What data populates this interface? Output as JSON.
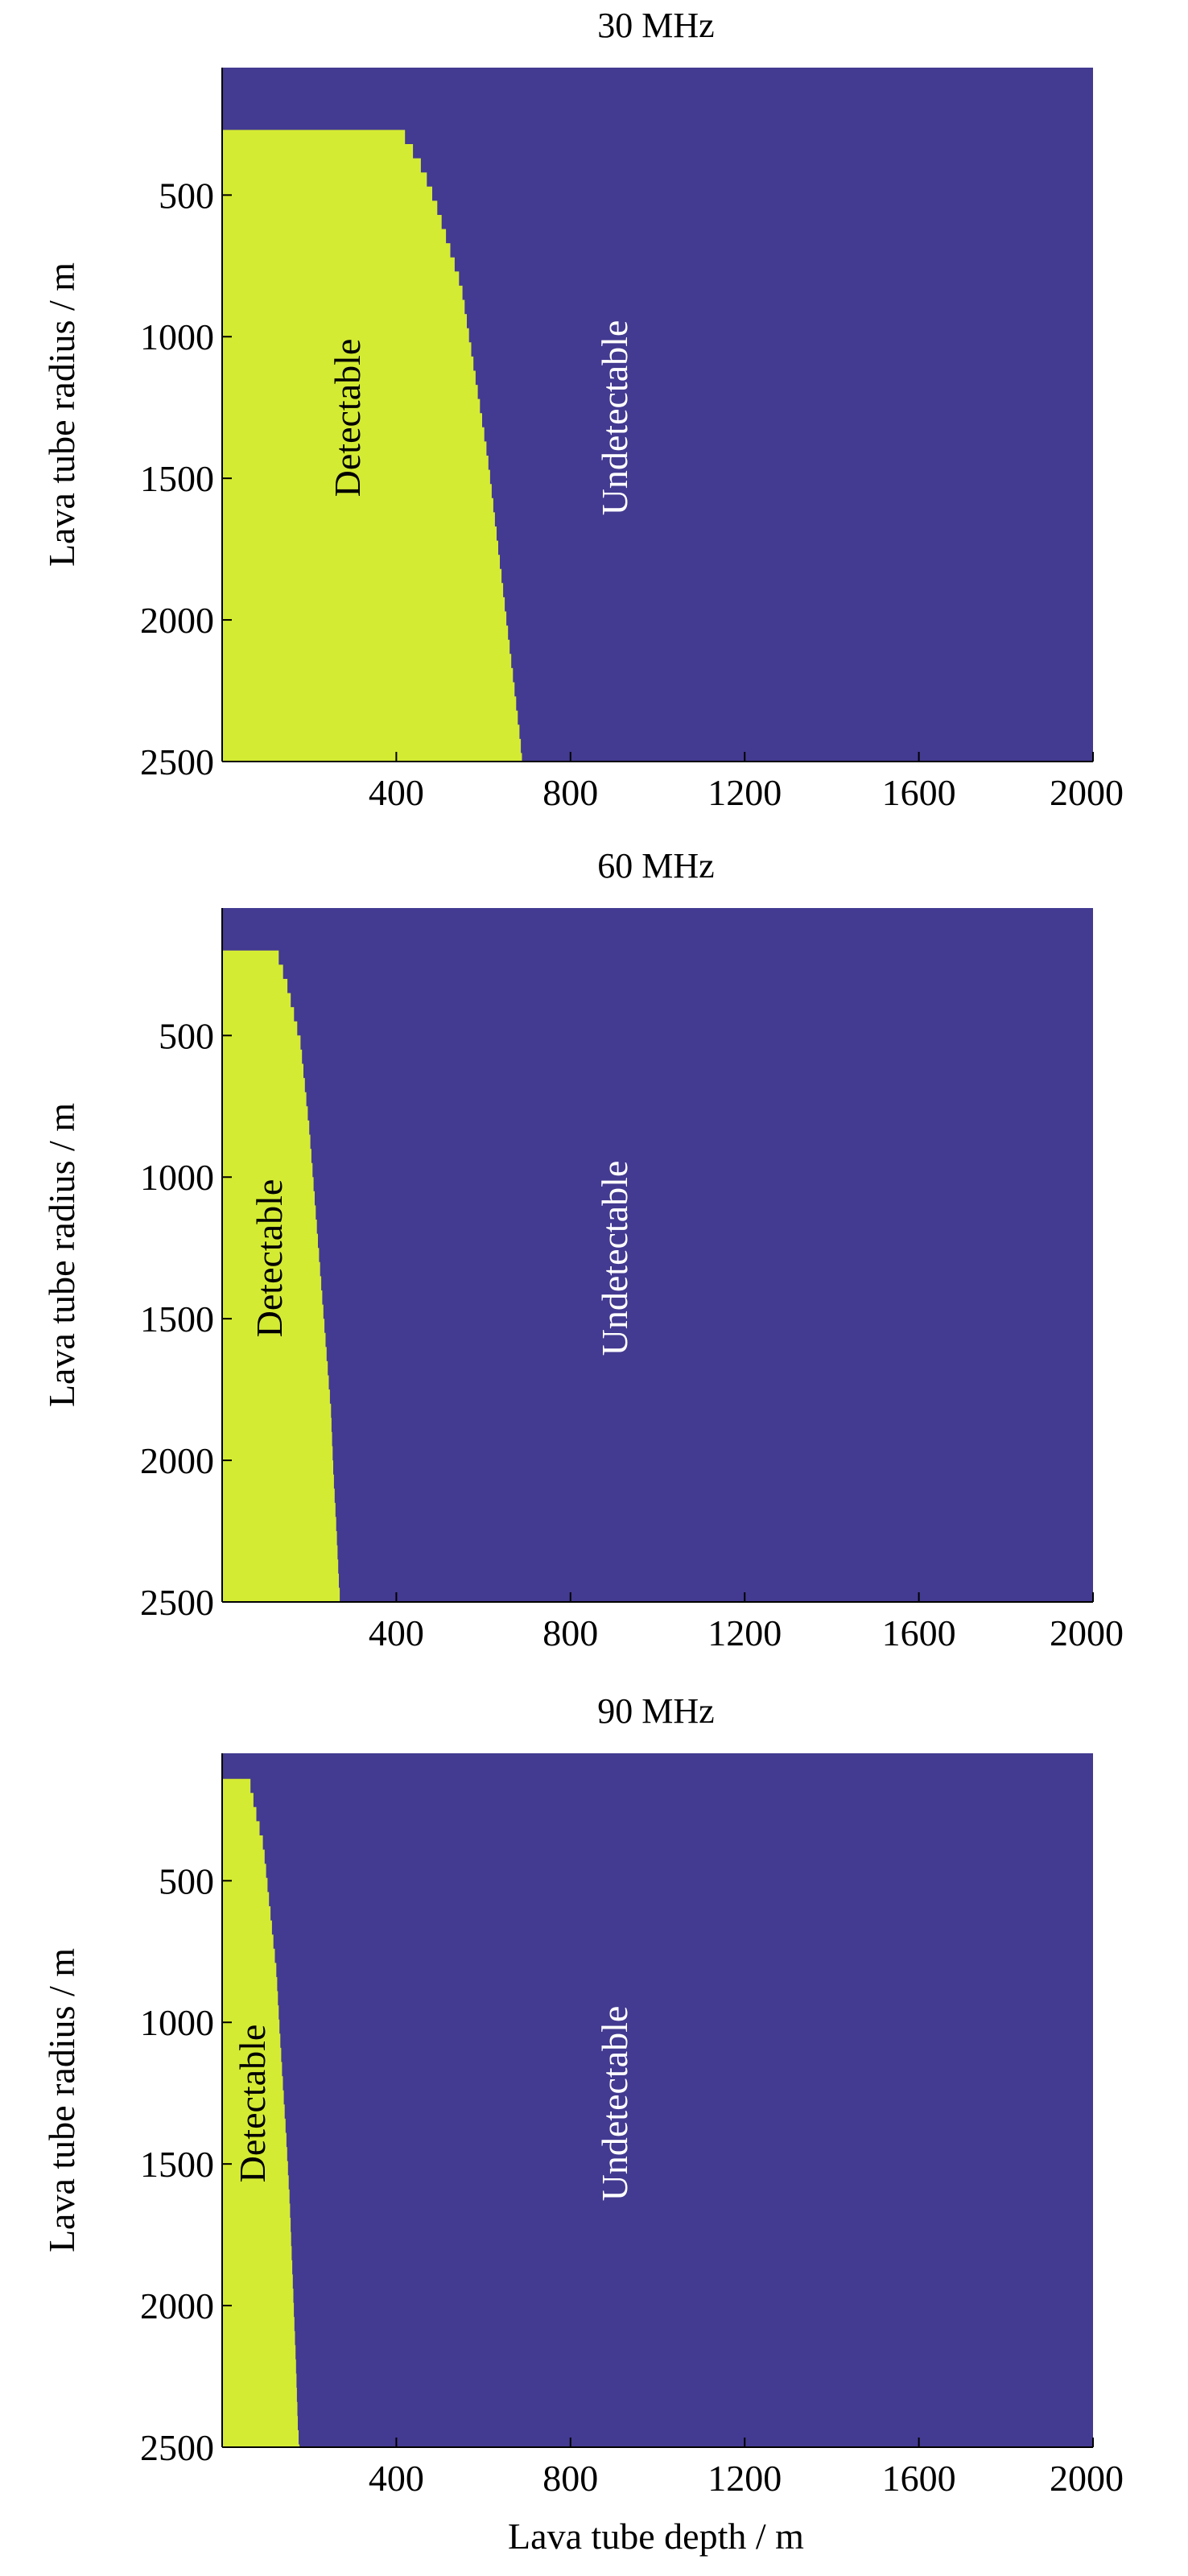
{
  "chart_data": [
    {
      "type": "heatmap",
      "title": "30 MHz",
      "xlabel": "",
      "ylabel": "Lava tube radius / m",
      "xlim": [
        0,
        2000
      ],
      "ylim": [
        2500,
        50
      ],
      "y_axis_inverted": true,
      "xticks": [
        400,
        800,
        1200,
        1600,
        2000
      ],
      "yticks": [
        500,
        1000,
        1500,
        2000,
        2500
      ],
      "colors": {
        "detectable": "#d4eb33",
        "undetectable": "#433a91"
      },
      "region_labels": {
        "detectable": "Detectable",
        "undetectable": "Undetectable"
      },
      "radius_min": 270,
      "boundary": {
        "radius": [
          270,
          380,
          500,
          650,
          800,
          1000,
          1200,
          1400,
          1600,
          1800,
          2000,
          2200,
          2400,
          2500
        ],
        "max_depth": [
          420,
          460,
          490,
          520,
          550,
          570,
          590,
          610,
          625,
          640,
          655,
          670,
          685,
          690
        ]
      }
    },
    {
      "type": "heatmap",
      "title": "60 MHz",
      "xlabel": "",
      "ylabel": "Lava tube radius / m",
      "xlim": [
        0,
        2000
      ],
      "ylim": [
        2500,
        50
      ],
      "y_axis_inverted": true,
      "xticks": [
        400,
        800,
        1200,
        1600,
        2000
      ],
      "yticks": [
        500,
        1000,
        1500,
        2000,
        2500
      ],
      "colors": {
        "detectable": "#d4eb33",
        "undetectable": "#433a91"
      },
      "region_labels": {
        "detectable": "Detectable",
        "undetectable": "Undetectable"
      },
      "radius_min": 200,
      "boundary": {
        "radius": [
          200,
          300,
          400,
          500,
          650,
          800,
          1000,
          1200,
          1400,
          1600,
          1800,
          2000,
          2200,
          2400,
          2500
        ],
        "max_depth": [
          130,
          150,
          165,
          180,
          190,
          200,
          210,
          220,
          230,
          240,
          250,
          255,
          262,
          268,
          272
        ]
      }
    },
    {
      "type": "heatmap",
      "title": "90 MHz",
      "xlabel": "Lava tube depth / m",
      "ylabel": "Lava tube radius / m",
      "xlim": [
        0,
        2000
      ],
      "ylim": [
        2500,
        50
      ],
      "y_axis_inverted": true,
      "xticks": [
        400,
        800,
        1200,
        1600,
        2000
      ],
      "yticks": [
        500,
        1000,
        1500,
        2000,
        2500
      ],
      "colors": {
        "detectable": "#d4eb33",
        "undetectable": "#433a91"
      },
      "region_labels": {
        "detectable": "Detectable",
        "undetectable": "Undetectable"
      },
      "radius_min": 140,
      "boundary": {
        "radius": [
          140,
          250,
          350,
          500,
          650,
          800,
          1000,
          1200,
          1400,
          1600,
          1800,
          2000,
          2200,
          2400,
          2500
        ],
        "max_depth": [
          65,
          80,
          95,
          105,
          115,
          125,
          132,
          140,
          148,
          155,
          160,
          165,
          170,
          174,
          178
        ]
      }
    }
  ]
}
